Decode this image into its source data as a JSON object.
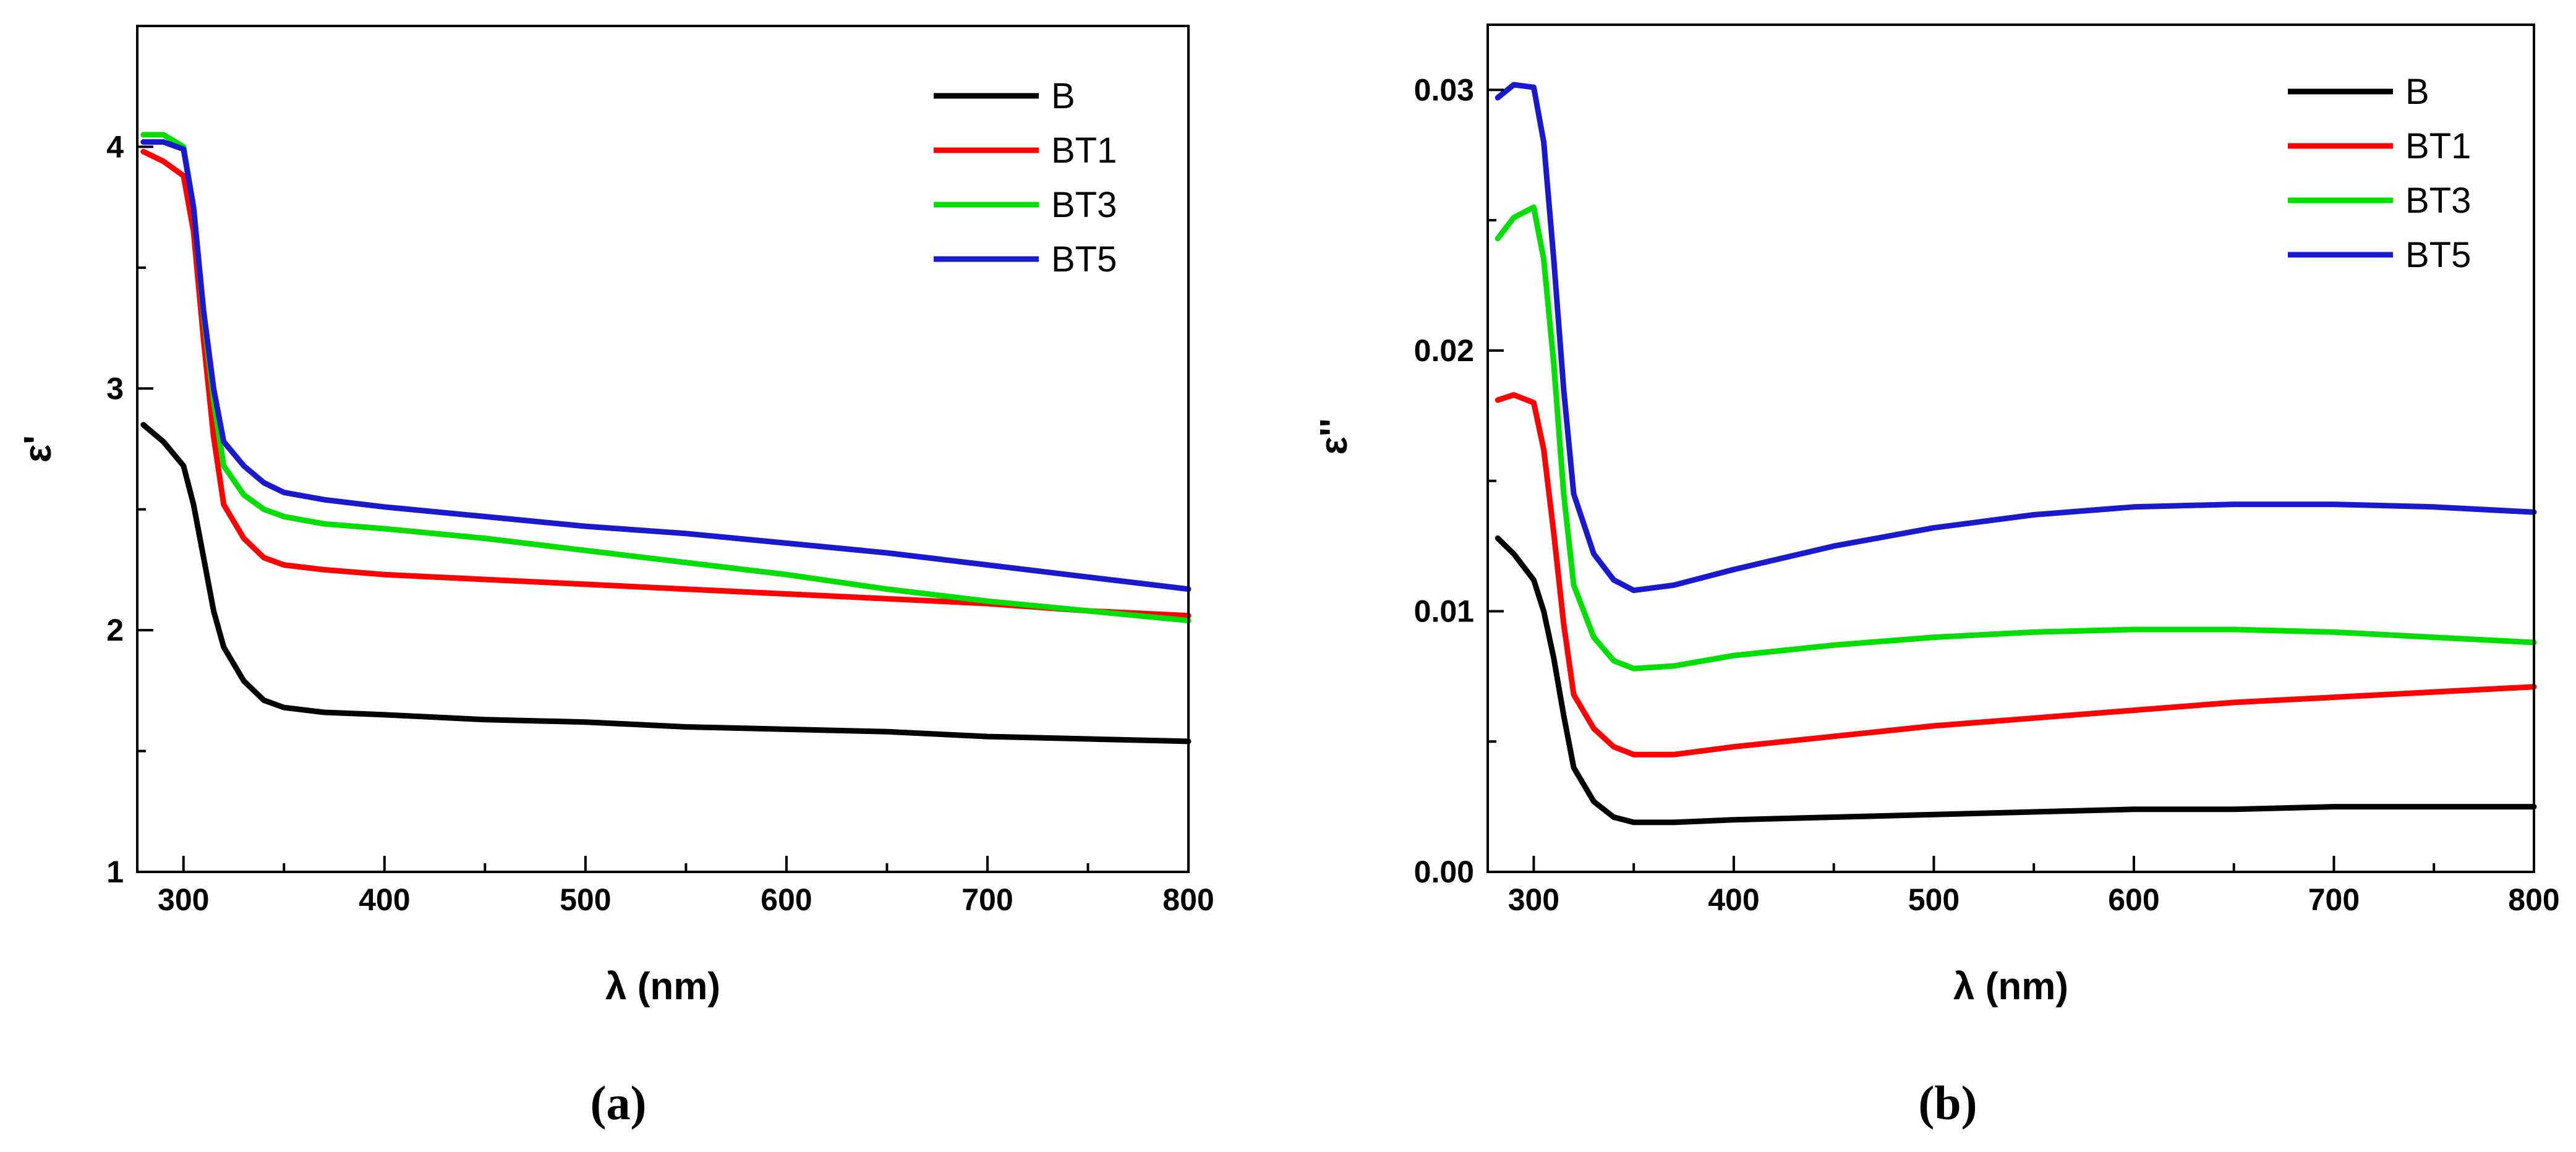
{
  "chart_data": [
    {
      "type": "line",
      "panel": "a",
      "caption": "(a)",
      "xlabel": "λ (nm)",
      "ylabel": "ε'",
      "xlim": [
        277,
        800
      ],
      "ylim": [
        1,
        4.5
      ],
      "xticks": [
        300,
        400,
        500,
        600,
        700,
        800
      ],
      "xtick_labels": [
        "300",
        "400",
        "500",
        "600",
        "700",
        "800"
      ],
      "yticks": [
        1,
        2,
        3,
        4
      ],
      "ytick_labels": [
        "1",
        "2",
        "3",
        "4"
      ],
      "legend_position": "top-right",
      "series": [
        {
          "name": "B",
          "color": "#000000",
          "x": [
            280,
            290,
            300,
            305,
            310,
            315,
            320,
            330,
            340,
            350,
            370,
            400,
            450,
            500,
            550,
            600,
            650,
            700,
            750,
            800
          ],
          "y": [
            2.85,
            2.78,
            2.68,
            2.52,
            2.3,
            2.08,
            1.93,
            1.79,
            1.71,
            1.68,
            1.66,
            1.65,
            1.63,
            1.62,
            1.6,
            1.59,
            1.58,
            1.56,
            1.55,
            1.54
          ]
        },
        {
          "name": "BT1",
          "color": "#ff0000",
          "x": [
            280,
            290,
            300,
            305,
            310,
            315,
            320,
            330,
            340,
            350,
            370,
            400,
            450,
            500,
            550,
            600,
            650,
            700,
            750,
            800
          ],
          "y": [
            3.98,
            3.94,
            3.88,
            3.65,
            3.2,
            2.8,
            2.52,
            2.38,
            2.3,
            2.27,
            2.25,
            2.23,
            2.21,
            2.19,
            2.17,
            2.15,
            2.13,
            2.11,
            2.08,
            2.06
          ]
        },
        {
          "name": "BT3",
          "color": "#00dd00",
          "x": [
            280,
            290,
            300,
            305,
            310,
            315,
            320,
            330,
            340,
            350,
            370,
            400,
            450,
            500,
            550,
            600,
            650,
            700,
            750,
            800
          ],
          "y": [
            4.05,
            4.05,
            4.0,
            3.75,
            3.3,
            2.95,
            2.68,
            2.56,
            2.5,
            2.47,
            2.44,
            2.42,
            2.38,
            2.33,
            2.28,
            2.23,
            2.17,
            2.12,
            2.08,
            2.04
          ]
        },
        {
          "name": "BT5",
          "color": "#1a1acc",
          "x": [
            280,
            290,
            300,
            305,
            310,
            315,
            320,
            330,
            340,
            350,
            370,
            400,
            450,
            500,
            550,
            600,
            650,
            700,
            750,
            800
          ],
          "y": [
            4.02,
            4.02,
            3.99,
            3.75,
            3.32,
            3.0,
            2.78,
            2.68,
            2.61,
            2.57,
            2.54,
            2.51,
            2.47,
            2.43,
            2.4,
            2.36,
            2.32,
            2.27,
            2.22,
            2.17
          ]
        }
      ]
    },
    {
      "type": "line",
      "panel": "b",
      "caption": "(b)",
      "xlabel": "λ (nm)",
      "ylabel": "ε''",
      "xlim": [
        277,
        800
      ],
      "ylim": [
        0,
        0.0325
      ],
      "xticks": [
        300,
        400,
        500,
        600,
        700,
        800
      ],
      "xtick_labels": [
        "300",
        "400",
        "500",
        "600",
        "700",
        "800"
      ],
      "yticks": [
        0,
        0.01,
        0.02,
        0.03
      ],
      "ytick_labels": [
        "0.00",
        "0.01",
        "0.02",
        "0.03"
      ],
      "legend_position": "top-right",
      "series": [
        {
          "name": "B",
          "color": "#000000",
          "x": [
            282,
            290,
            300,
            305,
            310,
            315,
            320,
            330,
            340,
            350,
            370,
            400,
            450,
            500,
            550,
            600,
            650,
            700,
            750,
            800
          ],
          "y": [
            0.0128,
            0.0122,
            0.0112,
            0.01,
            0.0082,
            0.006,
            0.004,
            0.0027,
            0.0021,
            0.0019,
            0.0019,
            0.002,
            0.0021,
            0.0022,
            0.0023,
            0.0024,
            0.0024,
            0.0025,
            0.0025,
            0.0025
          ]
        },
        {
          "name": "BT1",
          "color": "#ff0000",
          "x": [
            282,
            290,
            300,
            305,
            310,
            315,
            320,
            330,
            340,
            350,
            370,
            400,
            450,
            500,
            550,
            600,
            650,
            700,
            750,
            800
          ],
          "y": [
            0.0181,
            0.0183,
            0.018,
            0.0162,
            0.013,
            0.0095,
            0.0068,
            0.0055,
            0.0048,
            0.0045,
            0.0045,
            0.0048,
            0.0052,
            0.0056,
            0.0059,
            0.0062,
            0.0065,
            0.0067,
            0.0069,
            0.0071
          ]
        },
        {
          "name": "BT3",
          "color": "#00dd00",
          "x": [
            282,
            290,
            300,
            305,
            310,
            315,
            320,
            330,
            340,
            350,
            370,
            400,
            450,
            500,
            550,
            600,
            650,
            700,
            750,
            800
          ],
          "y": [
            0.0243,
            0.0251,
            0.0255,
            0.0235,
            0.0195,
            0.0145,
            0.011,
            0.009,
            0.0081,
            0.0078,
            0.0079,
            0.0083,
            0.0087,
            0.009,
            0.0092,
            0.0093,
            0.0093,
            0.0092,
            0.009,
            0.0088
          ]
        },
        {
          "name": "BT5",
          "color": "#1a1acc",
          "x": [
            282,
            290,
            300,
            305,
            310,
            315,
            320,
            330,
            340,
            350,
            370,
            400,
            450,
            500,
            550,
            600,
            650,
            700,
            750,
            800
          ],
          "y": [
            0.0297,
            0.0302,
            0.0301,
            0.028,
            0.0235,
            0.0185,
            0.0145,
            0.0122,
            0.0112,
            0.0108,
            0.011,
            0.0116,
            0.0125,
            0.0132,
            0.0137,
            0.014,
            0.0141,
            0.0141,
            0.014,
            0.0138
          ]
        }
      ]
    }
  ]
}
